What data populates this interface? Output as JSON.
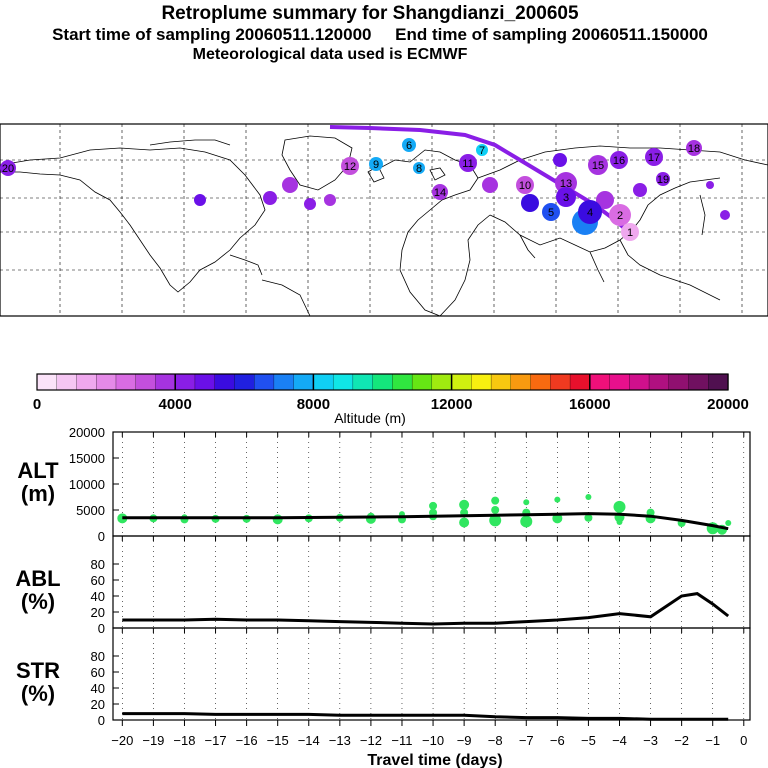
{
  "title": {
    "main": "Retroplume summary for Shangdianzi_200605",
    "sampling": "Start time of sampling 20060511.120000     End time of sampling 20060511.150000",
    "met": "Meteorological data used is ECMWF"
  },
  "colorbar": {
    "label": "Altitude (m)",
    "ticks": [
      "0",
      "4000",
      "8000",
      "12000",
      "16000",
      "20000"
    ],
    "colors": [
      "#fbe3f9",
      "#f5c6f3",
      "#efa8ee",
      "#e58ae8",
      "#d96ce3",
      "#c34fdd",
      "#a633e0",
      "#8a1ee6",
      "#6a10e8",
      "#3a0ce0",
      "#2020e0",
      "#2050f0",
      "#1a80f4",
      "#14aaf6",
      "#10cff4",
      "#10e6e6",
      "#10e6b4",
      "#14e67c",
      "#30e640",
      "#66e614",
      "#a0ea10",
      "#d0f010",
      "#f8f010",
      "#f8c810",
      "#f89a10",
      "#f86a10",
      "#f03a20",
      "#e8102c",
      "#f0107a",
      "#e8108c",
      "#d0108c",
      "#b01080",
      "#901070",
      "#701060",
      "#501050"
    ]
  },
  "map": {
    "labels": [
      {
        "t": "20",
        "c": "#8a1ee6"
      },
      {
        "t": "12",
        "c": "#c34fdd"
      },
      {
        "t": "9",
        "c": "#14aaf6"
      },
      {
        "t": "8",
        "c": "#14aaf6"
      },
      {
        "t": "7",
        "c": "#10cff4"
      },
      {
        "t": "6",
        "c": "#14aaf6"
      },
      {
        "t": "11",
        "c": "#8a1ee6"
      },
      {
        "t": "10",
        "c": "#c34fdd"
      },
      {
        "t": "13",
        "c": "#a633e0"
      },
      {
        "t": "14",
        "c": "#a633e0"
      },
      {
        "t": "15",
        "c": "#a633e0"
      },
      {
        "t": "16",
        "c": "#8a1ee6"
      },
      {
        "t": "17",
        "c": "#8a1ee6"
      },
      {
        "t": "18",
        "c": "#a633e0"
      },
      {
        "t": "19",
        "c": "#8a1ee6"
      },
      {
        "t": "5",
        "c": "#2050f0"
      },
      {
        "t": "4",
        "c": "#3a0ce0"
      },
      {
        "t": "3",
        "c": "#6a10e8"
      },
      {
        "t": "2",
        "c": "#d96ce3"
      },
      {
        "t": "1",
        "c": "#efa8ee"
      }
    ]
  },
  "panels": {
    "alt": {
      "label1": "ALT",
      "label2": "(m)",
      "yticks": [
        "0",
        "5000",
        "10000",
        "15000",
        "20000"
      ],
      "ymax": 20000
    },
    "abl": {
      "label1": "ABL",
      "label2": "(%)",
      "yticks": [
        "0",
        "20",
        "40",
        "60",
        "80"
      ],
      "ymax": 100
    },
    "str": {
      "label1": "STR",
      "label2": "(%)",
      "yticks": [
        "0",
        "20",
        "40",
        "60",
        "80"
      ],
      "ymax": 100
    }
  },
  "chart_data": {
    "type": "line",
    "title": "Retroplume summary for Shangdianzi_200605",
    "xlabel": "Travel time (days)",
    "xlim": [
      -20.3,
      0.2
    ],
    "xticks": [
      "−20",
      "−19",
      "−18",
      "−17",
      "−16",
      "−15",
      "−14",
      "−13",
      "−12",
      "−11",
      "−10",
      "−9",
      "−8",
      "−7",
      "−6",
      "−5",
      "−4",
      "−3",
      "−2",
      "−1",
      "0"
    ],
    "x": [
      -20,
      -19,
      -18,
      -17,
      -16,
      -15,
      -14,
      -13,
      -12,
      -11,
      -10,
      -9,
      -8,
      -7,
      -6,
      -5,
      -4,
      -3,
      -2,
      -1.5,
      -1,
      -0.5
    ],
    "series": [
      {
        "name": "ALT (m)",
        "values": [
          3500,
          3500,
          3500,
          3500,
          3500,
          3500,
          3550,
          3600,
          3650,
          3700,
          3800,
          3900,
          4000,
          4100,
          4200,
          4300,
          4200,
          3800,
          3000,
          2500,
          2000,
          1400
        ]
      },
      {
        "name": "ABL (%)",
        "values": [
          10,
          10,
          10,
          11,
          10,
          10,
          9,
          8,
          7,
          6,
          5,
          6,
          6,
          8,
          10,
          13,
          18,
          14,
          40,
          43,
          30,
          15
        ]
      },
      {
        "name": "STR (%)",
        "values": [
          8,
          8,
          8,
          7,
          7,
          7,
          7,
          6,
          6,
          6,
          6,
          6,
          4,
          3,
          3,
          2,
          2,
          1,
          1,
          1,
          1,
          1
        ]
      }
    ],
    "alt_scatter": {
      "x": [
        -20,
        -19,
        -18,
        -18,
        -17,
        -16,
        -15,
        -14,
        -13,
        -12,
        -12,
        -11,
        -11,
        -10,
        -10,
        -10,
        -9,
        -9,
        -9,
        -8,
        -8,
        -8,
        -7,
        -7,
        -7,
        -6,
        -6,
        -5,
        -5,
        -4,
        -4,
        -4,
        -3,
        -3,
        -2,
        -1,
        -0.7,
        -0.5
      ],
      "y": [
        3400,
        3400,
        3200,
        3600,
        3300,
        3300,
        3200,
        3400,
        3500,
        3300,
        3700,
        3200,
        4200,
        3800,
        4500,
        5800,
        2600,
        4500,
        6000,
        3000,
        5000,
        6800,
        2800,
        4500,
        6500,
        3400,
        7000,
        3500,
        7500,
        3600,
        5600,
        2700,
        3400,
        4500,
        2500,
        1500,
        1200,
        2500
      ],
      "s": [
        5,
        4,
        4,
        3,
        4,
        4,
        5,
        4,
        4,
        5,
        4,
        4,
        3,
        4,
        4,
        4,
        5,
        4,
        5,
        6,
        4,
        4,
        6,
        4,
        3,
        5,
        3,
        4,
        3,
        5,
        6,
        3,
        5,
        4,
        4,
        6,
        5,
        3
      ]
    }
  }
}
